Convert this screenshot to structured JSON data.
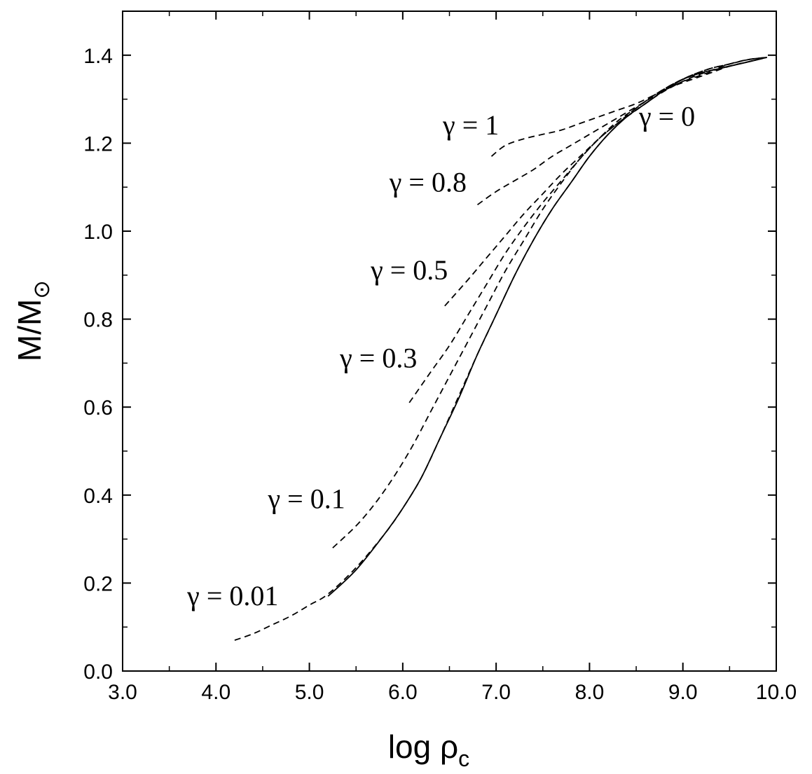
{
  "chart_data": {
    "type": "line",
    "xlabel_main": "log ρ",
    "xlabel_sub": "c",
    "ylabel_main": "M/M",
    "ylabel_sub": "⊙",
    "xlim": [
      3.0,
      10.0
    ],
    "ylim": [
      0.0,
      1.5
    ],
    "xticks": [
      "3.0",
      "4.0",
      "5.0",
      "6.0",
      "7.0",
      "8.0",
      "9.0",
      "10.0"
    ],
    "yticks": [
      "0.0",
      "0.2",
      "0.4",
      "0.6",
      "0.8",
      "1.0",
      "1.2",
      "1.4"
    ],
    "grid": false,
    "legend": "none",
    "series": [
      {
        "name": "γ = 0",
        "style": "solid",
        "x": [
          5.2,
          5.5,
          5.8,
          6.0,
          6.2,
          6.4,
          6.6,
          6.8,
          7.0,
          7.2,
          7.4,
          7.6,
          7.8,
          8.0,
          8.2,
          8.4,
          8.6,
          8.8,
          9.0,
          9.2,
          9.4,
          9.6,
          9.8
        ],
        "y": [
          0.17,
          0.23,
          0.31,
          0.37,
          0.44,
          0.53,
          0.62,
          0.72,
          0.81,
          0.9,
          0.98,
          1.05,
          1.11,
          1.17,
          1.22,
          1.26,
          1.29,
          1.32,
          1.345,
          1.36,
          1.37,
          1.38,
          1.39
        ]
      },
      {
        "name": "γ = 0.01",
        "style": "dashed",
        "x": [
          4.2,
          4.4,
          4.6,
          4.8,
          5.0,
          5.2,
          5.5,
          5.8,
          6.0,
          6.2,
          6.4,
          6.6,
          6.8,
          7.0,
          7.2,
          7.4,
          7.6,
          7.8,
          8.0,
          8.2,
          8.4,
          8.6,
          8.8,
          9.0,
          9.2,
          9.4,
          9.6,
          9.8,
          9.9
        ],
        "y": [
          0.07,
          0.085,
          0.105,
          0.125,
          0.15,
          0.175,
          0.235,
          0.31,
          0.37,
          0.44,
          0.53,
          0.625,
          0.72,
          0.81,
          0.9,
          0.98,
          1.05,
          1.11,
          1.17,
          1.22,
          1.26,
          1.29,
          1.32,
          1.345,
          1.36,
          1.37,
          1.38,
          1.39,
          1.395
        ]
      },
      {
        "name": "γ = 0.1",
        "style": "dashed",
        "x": [
          5.25,
          5.5,
          5.7,
          5.9,
          6.1,
          6.3,
          6.5,
          6.7,
          6.9,
          7.1,
          7.3,
          7.5,
          7.7,
          7.9,
          8.1,
          8.3,
          8.5,
          8.7,
          8.9,
          9.1,
          9.3,
          9.5,
          9.7,
          9.9
        ],
        "y": [
          0.28,
          0.33,
          0.38,
          0.44,
          0.51,
          0.59,
          0.67,
          0.75,
          0.83,
          0.91,
          0.98,
          1.05,
          1.11,
          1.165,
          1.21,
          1.25,
          1.28,
          1.31,
          1.335,
          1.355,
          1.37,
          1.38,
          1.39,
          1.395
        ]
      },
      {
        "name": "γ = 0.3",
        "style": "dashed",
        "x": [
          6.07,
          6.3,
          6.5,
          6.7,
          6.9,
          7.1,
          7.3,
          7.5,
          7.7,
          7.9,
          8.1,
          8.3,
          8.5,
          8.7,
          8.9,
          9.1,
          9.3,
          9.5,
          9.7,
          9.9
        ],
        "y": [
          0.61,
          0.68,
          0.74,
          0.81,
          0.88,
          0.95,
          1.01,
          1.065,
          1.115,
          1.165,
          1.21,
          1.245,
          1.28,
          1.31,
          1.335,
          1.355,
          1.37,
          1.38,
          1.39,
          1.395
        ]
      },
      {
        "name": "γ = 0.5",
        "style": "dashed",
        "x": [
          6.45,
          6.7,
          6.9,
          7.1,
          7.3,
          7.5,
          7.7,
          7.9,
          8.1,
          8.3,
          8.5,
          8.7,
          8.9,
          9.1,
          9.3,
          9.5,
          9.7,
          9.9
        ],
        "y": [
          0.83,
          0.89,
          0.94,
          0.99,
          1.04,
          1.085,
          1.13,
          1.17,
          1.21,
          1.245,
          1.275,
          1.305,
          1.33,
          1.35,
          1.365,
          1.38,
          1.39,
          1.395
        ]
      },
      {
        "name": "γ = 0.8",
        "style": "dashed",
        "x": [
          6.8,
          7.0,
          7.2,
          7.4,
          7.6,
          7.8,
          8.0,
          8.2,
          8.4,
          8.6,
          8.8,
          9.0,
          9.2,
          9.4,
          9.6,
          9.8,
          9.9
        ],
        "y": [
          1.06,
          1.09,
          1.115,
          1.14,
          1.17,
          1.195,
          1.22,
          1.245,
          1.27,
          1.295,
          1.32,
          1.34,
          1.355,
          1.37,
          1.38,
          1.39,
          1.395
        ]
      },
      {
        "name": "γ = 1",
        "style": "dashed",
        "x": [
          6.95,
          7.1,
          7.3,
          7.5,
          7.7,
          7.9,
          8.1,
          8.3,
          8.5,
          8.7,
          8.9,
          9.1,
          9.3,
          9.5,
          9.7,
          9.9
        ],
        "y": [
          1.17,
          1.195,
          1.21,
          1.22,
          1.23,
          1.245,
          1.26,
          1.275,
          1.29,
          1.31,
          1.33,
          1.345,
          1.36,
          1.375,
          1.385,
          1.395
        ]
      }
    ],
    "annotations": [
      {
        "text": "γ = 1",
        "x": 6.73,
        "y": 1.22
      },
      {
        "text": "γ = 0.8",
        "x": 6.27,
        "y": 1.09
      },
      {
        "text": "γ = 0.5",
        "x": 6.07,
        "y": 0.89
      },
      {
        "text": "γ = 0.3",
        "x": 5.74,
        "y": 0.69
      },
      {
        "text": "γ = 0.1",
        "x": 4.97,
        "y": 0.37
      },
      {
        "text": "γ = 0.01",
        "x": 4.18,
        "y": 0.15
      },
      {
        "text": "γ = 0",
        "x": 8.83,
        "y": 1.24
      }
    ]
  }
}
